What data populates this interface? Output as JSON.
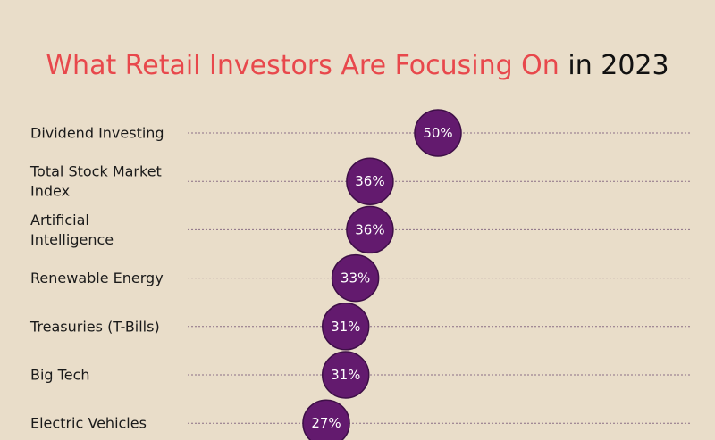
{
  "colors": {
    "background": "#e9ddc9",
    "title_accent": "#e8484c",
    "title_text": "#111111",
    "dot_fill": "#631a6e",
    "dot_stroke": "#3e0f47",
    "guide_line": "#8a6f86",
    "label_text": "#1a1a1a",
    "value_text": "#ffffff"
  },
  "chart_data": {
    "type": "dot",
    "title_accent": "What Retail Investors Are Focusing On",
    "title_tail": "in 2023",
    "xlabel": "",
    "ylabel": "",
    "value_suffix": "%",
    "xlim": [
      0,
      60
    ],
    "grid": false,
    "legend": "none",
    "categories": [
      [
        "Dividend Investing"
      ],
      [
        "Total Stock Market",
        "Index"
      ],
      [
        "Artificial",
        "Intelligence"
      ],
      [
        "Renewable Energy"
      ],
      [
        "Treasuries (T-Bills)"
      ],
      [
        "Big Tech"
      ],
      [
        "Electric Vehicles"
      ]
    ],
    "values": [
      50,
      36,
      36,
      33,
      31,
      31,
      27
    ]
  }
}
